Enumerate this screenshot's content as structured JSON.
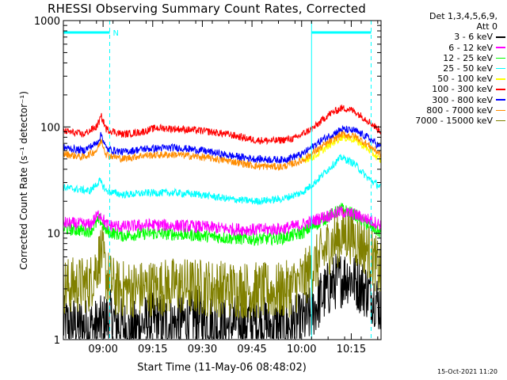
{
  "chart_data": {
    "type": "line",
    "title": "RHESSI Observing Summary Count Rates, Corrected",
    "xlabel": "Start Time (11-May-06 08:48:02)",
    "ylabel": "Corrected Count Rate (s⁻¹ detector⁻¹)",
    "yscale": "log",
    "ylim": [
      1,
      1000
    ],
    "xlim_minutes": [
      0,
      96
    ],
    "x_ticks": [
      {
        "minute": 12,
        "label": "09:00"
      },
      {
        "minute": 27,
        "label": "09:15"
      },
      {
        "minute": 42,
        "label": "09:30"
      },
      {
        "minute": 57,
        "label": "09:45"
      },
      {
        "minute": 72,
        "label": "10:00"
      },
      {
        "minute": 87,
        "label": "10:15"
      }
    ],
    "y_ticks": [
      {
        "value": 1,
        "label": "1"
      },
      {
        "value": 10,
        "label": "10"
      },
      {
        "value": 100,
        "label": "100"
      },
      {
        "value": 1000,
        "label": "1000"
      }
    ],
    "legend_header": [
      "Det 1,3,4,5,6,9,",
      "Att 0"
    ],
    "series": [
      {
        "name": "3 - 6 keV",
        "color": "#000000",
        "x": [
          0,
          10,
          14,
          20,
          26,
          34,
          40,
          48,
          56,
          64,
          70,
          74,
          78,
          82,
          86,
          90,
          94,
          96
        ],
        "values": [
          1.4,
          1.3,
          1.6,
          1.2,
          1.5,
          1.4,
          1.6,
          1.3,
          1.5,
          1.3,
          1.4,
          1.6,
          2.5,
          3.5,
          4.0,
          3.2,
          2.5,
          2.0
        ]
      },
      {
        "name": "6 - 12 keV",
        "color": "#ff00ff",
        "x": [
          0,
          8,
          11,
          13,
          18,
          26,
          34,
          42,
          50,
          58,
          66,
          72,
          78,
          84,
          88,
          92,
          96
        ],
        "values": [
          12.5,
          12.0,
          15.5,
          12.0,
          11.5,
          12.0,
          11.8,
          11.5,
          11.0,
          10.8,
          11.0,
          12.0,
          14.0,
          16.0,
          15.0,
          13.5,
          12.0
        ]
      },
      {
        "name": "12 - 25 keV",
        "color": "#00ff00",
        "x": [
          0,
          8,
          11,
          13,
          18,
          26,
          34,
          42,
          50,
          58,
          66,
          72,
          78,
          84,
          88,
          92,
          96
        ],
        "values": [
          11.0,
          10.5,
          13.5,
          10.5,
          9.5,
          10.0,
          9.8,
          9.5,
          9.0,
          8.8,
          9.0,
          10.0,
          13.0,
          17.0,
          15.0,
          12.0,
          10.0
        ]
      },
      {
        "name": "25 - 50 keV",
        "color": "#00ffff",
        "x": [
          0,
          8,
          11,
          13,
          18,
          26,
          34,
          42,
          50,
          58,
          66,
          72,
          76,
          80,
          84,
          88,
          92,
          96
        ],
        "values": [
          27,
          25,
          31,
          25,
          23,
          24,
          24,
          23,
          21,
          20,
          21,
          24,
          30,
          40,
          52,
          45,
          33,
          27
        ]
      },
      {
        "name": "50 - 100 keV",
        "color": "#ffff00",
        "x": [
          72,
          76,
          80,
          84,
          88,
          92,
          96
        ],
        "values": [
          48,
          53,
          66,
          80,
          76,
          62,
          48
        ]
      },
      {
        "name": "100 - 300 keV",
        "color": "#ff0000",
        "x": [
          0,
          6,
          10,
          11.5,
          13,
          18,
          24,
          28,
          34,
          42,
          50,
          58,
          64,
          70,
          76,
          80,
          84,
          86,
          88,
          92,
          96
        ],
        "values": [
          92,
          85,
          100,
          125,
          95,
          85,
          90,
          98,
          96,
          92,
          85,
          75,
          74,
          78,
          100,
          130,
          150,
          148,
          140,
          115,
          90
        ]
      },
      {
        "name": "300 - 800 keV",
        "color": "#0000ff",
        "x": [
          0,
          6,
          10,
          11.5,
          13,
          18,
          24,
          34,
          42,
          50,
          58,
          66,
          72,
          78,
          84,
          88,
          92,
          96
        ],
        "values": [
          64,
          60,
          70,
          85,
          62,
          58,
          62,
          64,
          60,
          54,
          50,
          49,
          55,
          75,
          95,
          92,
          80,
          64
        ]
      },
      {
        "name": "800 - 7000 keV",
        "color": "#ff8c00",
        "x": [
          0,
          6,
          10,
          11.5,
          13,
          18,
          24,
          34,
          42,
          50,
          58,
          66,
          72,
          78,
          84,
          88,
          92,
          96
        ],
        "values": [
          56,
          52,
          60,
          75,
          55,
          50,
          54,
          55,
          52,
          48,
          43,
          42,
          48,
          65,
          85,
          82,
          68,
          55
        ]
      },
      {
        "name": "7000 - 15000 keV",
        "color": "#808000",
        "x": [
          0,
          8,
          10,
          11.5,
          13,
          16,
          24,
          34,
          42,
          50,
          58,
          64,
          68,
          72,
          76,
          80,
          84,
          86,
          88,
          92,
          96
        ],
        "values": [
          3.2,
          3.3,
          5.0,
          6.8,
          4.0,
          3.0,
          3.0,
          3.2,
          3.1,
          3.0,
          2.9,
          2.8,
          3.0,
          3.5,
          5.0,
          7.5,
          9.5,
          10.0,
          9.0,
          7.0,
          4.2
        ]
      }
    ],
    "annotations": {
      "vertical_lines_minutes": [
        0,
        14,
        75,
        93
      ],
      "flag_label": "N",
      "flag_segments_minutes": [
        [
          0,
          14
        ],
        [
          75,
          93
        ]
      ],
      "color": "#00ffff"
    }
  },
  "timestamp": "15-Oct-2021 11:20"
}
